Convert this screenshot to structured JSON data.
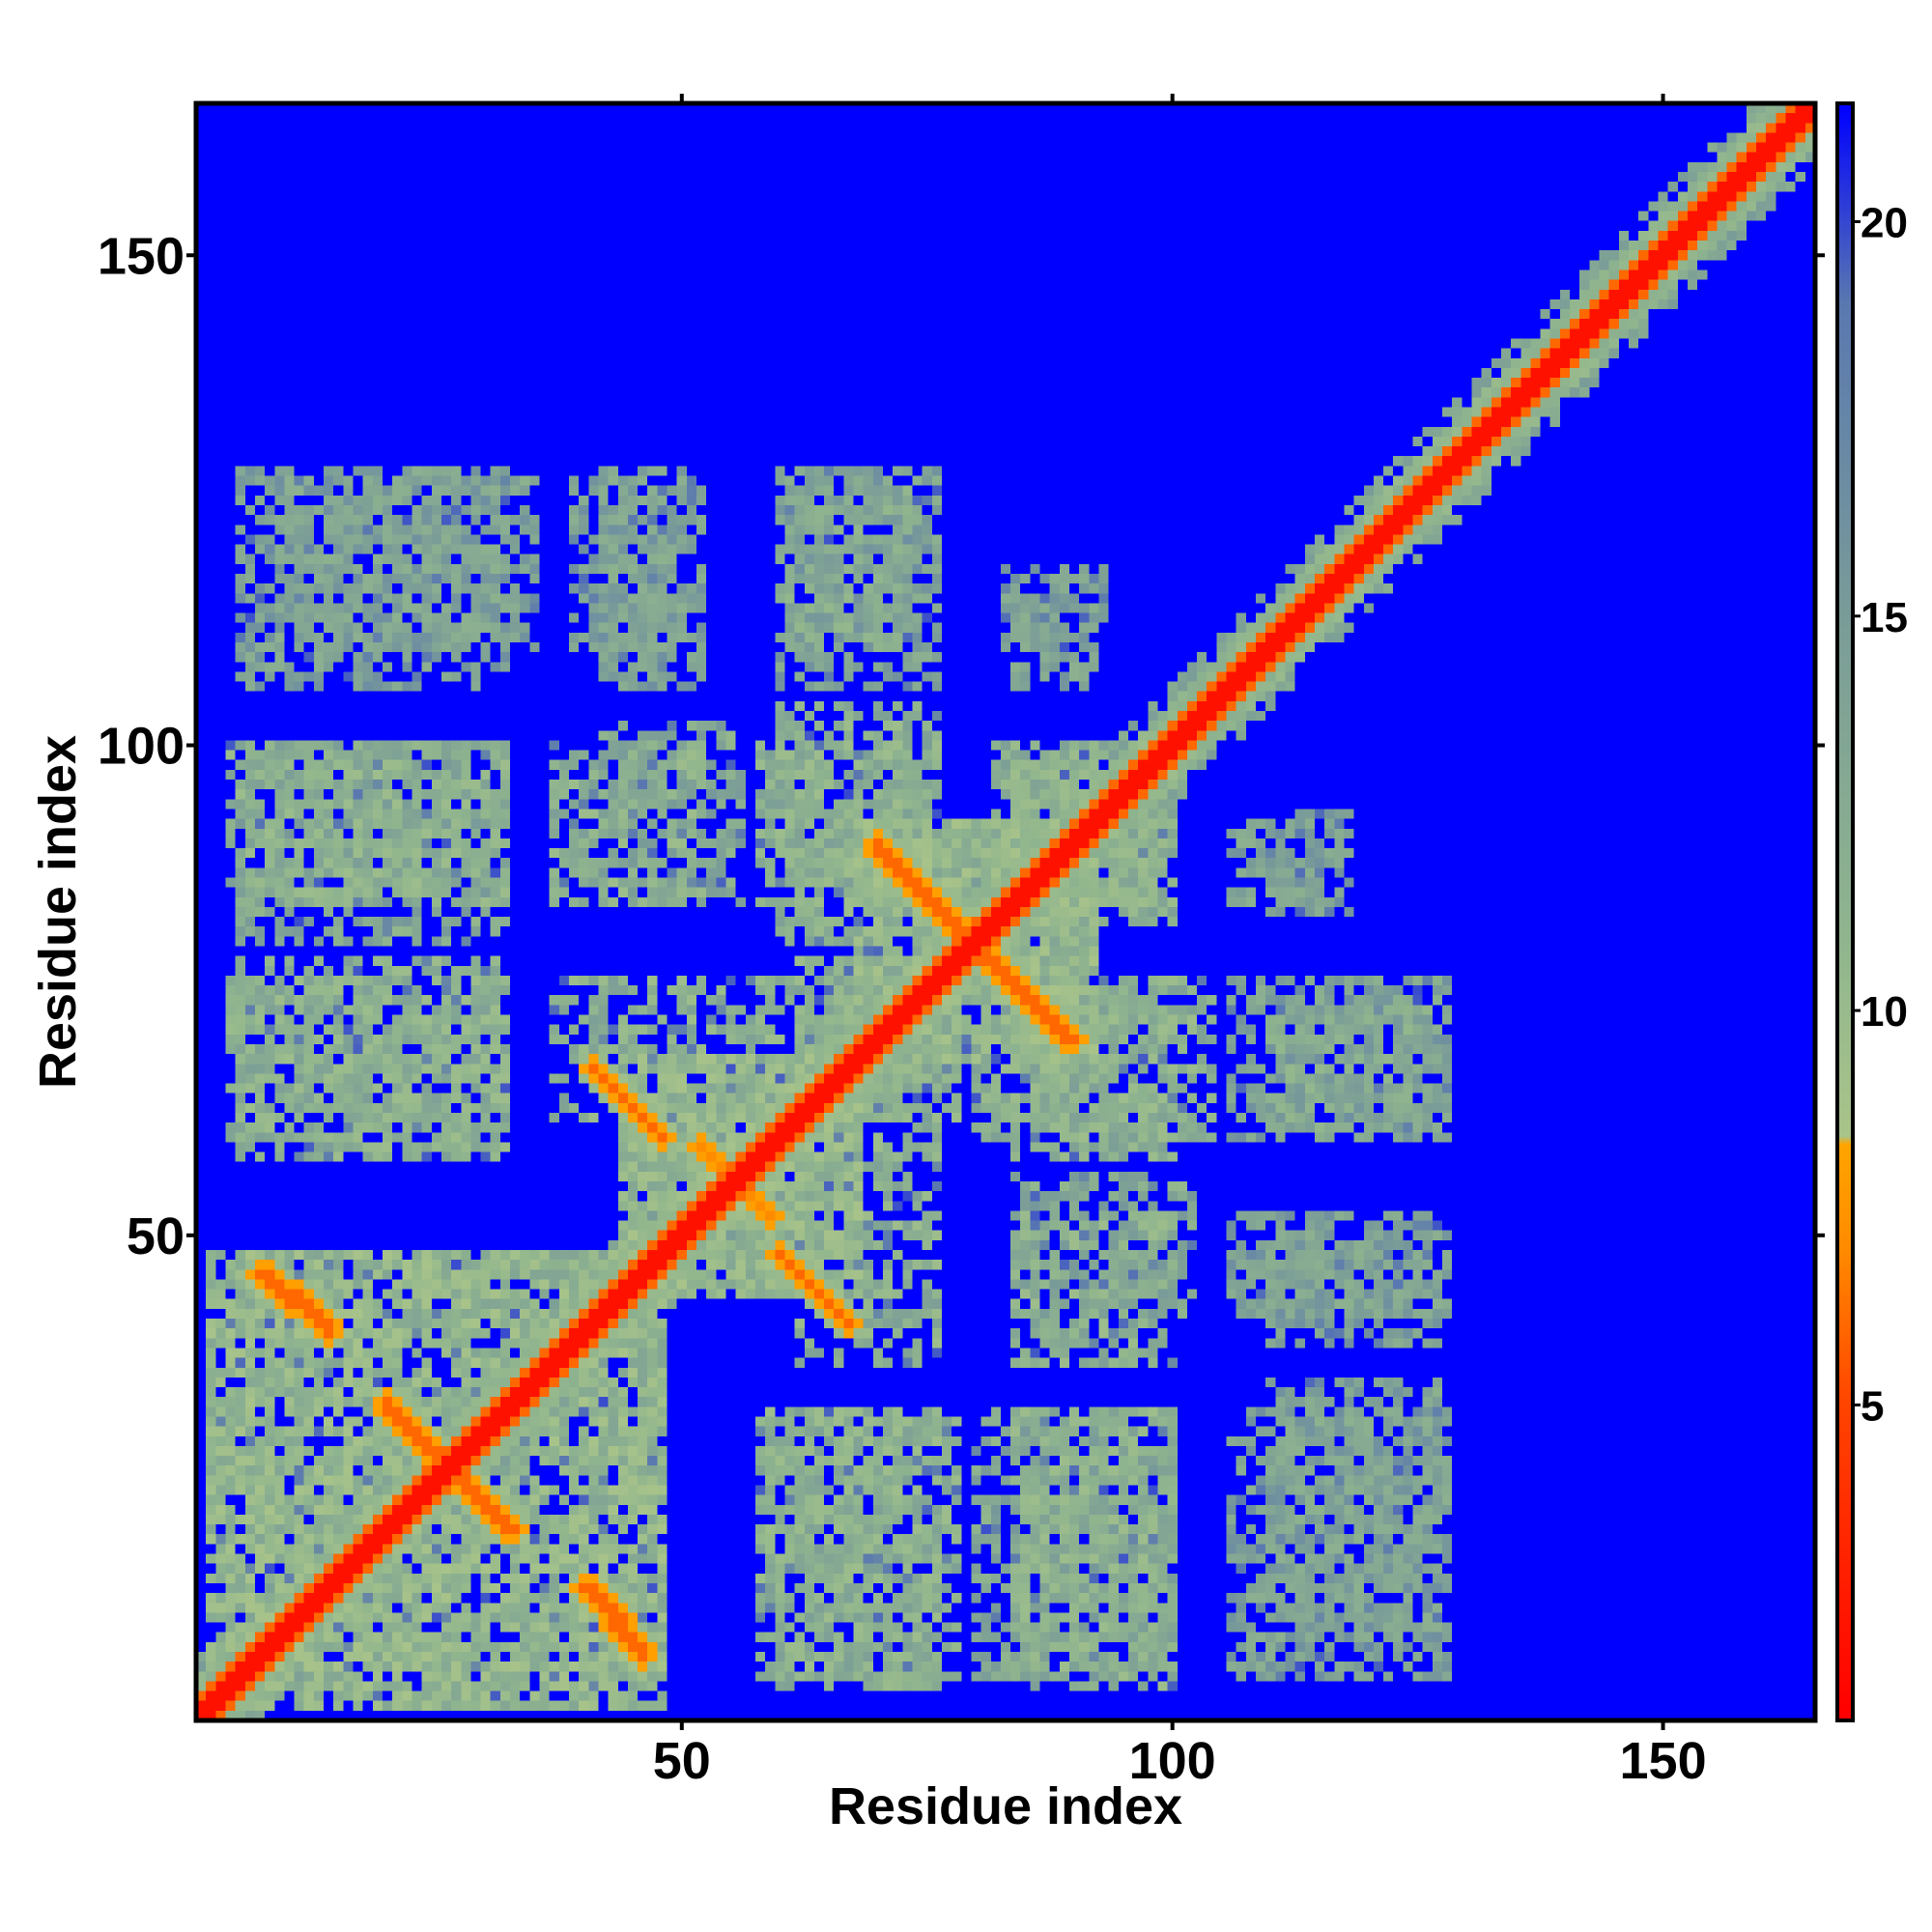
{
  "chart_data": {
    "type": "heatmap",
    "description_kind": "residue distance map",
    "n_residues": 165,
    "xlabel": "Residue index",
    "ylabel": "Residue index",
    "x_ticks": [
      50,
      100,
      150
    ],
    "y_ticks": [
      50,
      100,
      150
    ],
    "xlim": [
      0.5,
      165.5
    ],
    "ylim": [
      0.5,
      165.5
    ],
    "colorbar": {
      "range": [
        1,
        21.5
      ],
      "ticks": [
        5,
        10,
        15,
        20
      ],
      "stops": [
        {
          "value": 1,
          "color": "#ff0000"
        },
        {
          "value": 5,
          "color": "#ff4400"
        },
        {
          "value": 7,
          "color": "#ff8c00"
        },
        {
          "value": 8.3,
          "color": "#ffa500"
        },
        {
          "value": 8.4,
          "color": "#a9c48a"
        },
        {
          "value": 11,
          "color": "#8fb48e"
        },
        {
          "value": 15,
          "color": "#7a9c98"
        },
        {
          "value": 19,
          "color": "#5a78b0"
        },
        {
          "value": 21.5,
          "color": "#0000ff"
        }
      ]
    },
    "background_value": 21.5,
    "diagonal_band": {
      "core_value": 2,
      "edge_value": 6,
      "halo_value": 10
    },
    "contact_blocks": [
      {
        "x": [
          2,
          48
        ],
        "y": [
          2,
          48
        ],
        "value": 11
      },
      {
        "x": [
          44,
          68
        ],
        "y": [
          44,
          68
        ],
        "value": 11
      },
      {
        "x": [
          68,
          92
        ],
        "y": [
          68,
          92
        ],
        "value": 11
      },
      {
        "x": [
          4,
          32
        ],
        "y": [
          60,
          76
        ],
        "value": 12
      },
      {
        "x": [
          4,
          32
        ],
        "y": [
          84,
          100
        ],
        "value": 12
      },
      {
        "x": [
          37,
          52
        ],
        "y": [
          84,
          100
        ],
        "value": 12
      },
      {
        "x": [
          58,
          75
        ],
        "y": [
          84,
          100
        ],
        "value": 12
      },
      {
        "x": [
          82,
          100
        ],
        "y": [
          84,
          100
        ],
        "value": 12
      },
      {
        "x": [
          37,
          62
        ],
        "y": [
          62,
          76
        ],
        "value": 12
      },
      {
        "x": [
          62,
          78
        ],
        "y": [
          62,
          76
        ],
        "value": 12
      },
      {
        "x": [
          80,
          104
        ],
        "y": [
          60,
          76
        ],
        "value": 12
      },
      {
        "x": [
          58,
          78
        ],
        "y": [
          5,
          32
        ],
        "value": 12
      },
      {
        "x": [
          80,
          100
        ],
        "y": [
          5,
          32
        ],
        "value": 13
      },
      {
        "x": [
          84,
          102
        ],
        "y": [
          42,
          56
        ],
        "value": 13
      },
      {
        "x": [
          106,
          128
        ],
        "y": [
          5,
          32
        ],
        "value": 14
      },
      {
        "x": [
          106,
          128
        ],
        "y": [
          42,
          52
        ],
        "value": 14
      },
      {
        "x": [
          106,
          128
        ],
        "y": [
          60,
          76
        ],
        "value": 14
      },
      {
        "x": [
          106,
          114
        ],
        "y": [
          84,
          92
        ],
        "value": 14
      },
      {
        "x": [
          9,
          35
        ],
        "y": [
          110,
          127
        ],
        "value": 14
      },
      {
        "x": [
          39,
          50
        ],
        "y": [
          110,
          127
        ],
        "value": 14
      },
      {
        "x": [
          61,
          74
        ],
        "y": [
          110,
          127
        ],
        "value": 13
      },
      {
        "x": [
          83,
          93
        ],
        "y": [
          110,
          118
        ],
        "value": 14
      }
    ],
    "antidiagonal_contacts": [
      {
        "from": [
          7,
          46
        ],
        "to": [
          14,
          40
        ],
        "value": 6
      },
      {
        "from": [
          20,
          32
        ],
        "to": [
          33,
          20
        ],
        "value": 6
      },
      {
        "from": [
          41,
          14
        ],
        "to": [
          46,
          8
        ],
        "value": 6
      },
      {
        "from": [
          41,
          67
        ],
        "to": [
          47,
          61
        ],
        "value": 6
      },
      {
        "from": [
          60,
          48
        ],
        "to": [
          67,
          41
        ],
        "value": 6
      },
      {
        "from": [
          70,
          89
        ],
        "to": [
          90,
          70
        ],
        "value": 6
      },
      {
        "from": [
          53,
          58
        ],
        "to": [
          59,
          52
        ],
        "value": 7
      }
    ]
  }
}
